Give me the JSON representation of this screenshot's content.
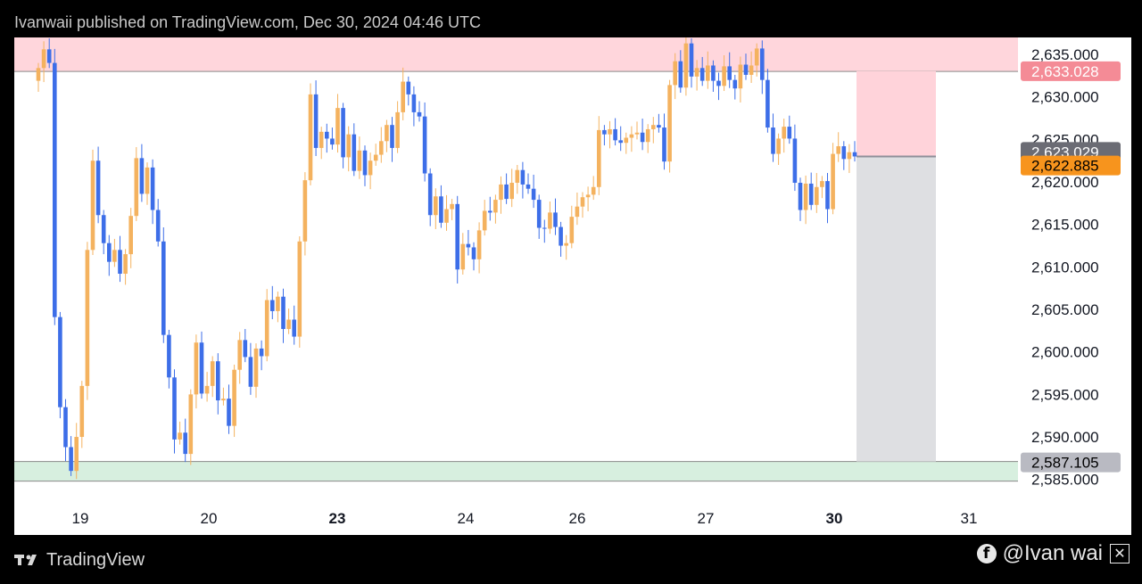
{
  "header": {
    "text": "Ivanwaii published on TradingView.com, Dec 30, 2024 04:46 UTC"
  },
  "footer": {
    "brand": "TradingView",
    "credit": "@Ivan wai",
    "social_icon": "facebook-icon",
    "x_icon": "x-icon"
  },
  "colors": {
    "up": "#f4b25f",
    "down": "#3d6ee8",
    "supply_zone": "#ffd6dc",
    "demand_zone": "#d7efdf",
    "price_tag": "#f7941d",
    "gray_tag": "#b9bac2"
  },
  "chart_data": {
    "type": "candlestick",
    "ylim": [
      2583.5,
      2637
    ],
    "y_ticks": [
      "2,585.000",
      "2,590.000",
      "2,595.000",
      "2,600.000",
      "2,605.000",
      "2,610.000",
      "2,615.000",
      "2,620.000",
      "2,625.000",
      "2,630.000",
      "2,635.000"
    ],
    "x_ticks": [
      {
        "label": "19",
        "bold": false
      },
      {
        "label": "20",
        "bold": false
      },
      {
        "label": "23",
        "bold": true
      },
      {
        "label": "24",
        "bold": false
      },
      {
        "label": "26",
        "bold": false
      },
      {
        "label": "27",
        "bold": false
      },
      {
        "label": "30",
        "bold": true
      },
      {
        "label": "31",
        "bold": false
      }
    ],
    "price_labels": {
      "supply": "2,633.028",
      "hidden": "2,623.029",
      "current": "2,622.885",
      "demand": "2,587.105"
    },
    "zones": {
      "supply": [
        2633.0,
        2637.5
      ],
      "demand": [
        2584.8,
        2587.1
      ]
    },
    "position_box": {
      "entry": 2623.0,
      "stop": 2633.03,
      "target": 2587.105
    },
    "closes": [
      2633.4,
      2635.6,
      2634.0,
      2604.1,
      2593.5,
      2588.8,
      2586.0,
      2590.0,
      2596.0,
      2612.0,
      2622.5,
      2616.1,
      2612.8,
      2610.6,
      2612.0,
      2609.2,
      2611.5,
      2616.0,
      2622.8,
      2618.6,
      2621.7,
      2616.7,
      2613.0,
      2602.0,
      2597.0,
      2589.7,
      2590.5,
      2588.0,
      2595.0,
      2601.1,
      2595.1,
      2596.0,
      2598.9,
      2594.3,
      2594.5,
      2591.3,
      2597.9,
      2601.4,
      2599.4,
      2595.9,
      2600.4,
      2599.5,
      2606.1,
      2604.8,
      2606.5,
      2602.7,
      2603.8,
      2601.8,
      2613.0,
      2620.2,
      2630.3,
      2624.0,
      2625.9,
      2625.1,
      2624.4,
      2628.7,
      2622.9,
      2625.6,
      2621.3,
      2623.7,
      2620.8,
      2622.5,
      2623.2,
      2624.8,
      2626.7,
      2624.0,
      2628.2,
      2631.8,
      2630.3,
      2628.2,
      2627.7,
      2621.0,
      2616.1,
      2618.3,
      2615.2,
      2616.8,
      2617.4,
      2609.7,
      2612.7,
      2612.3,
      2610.9,
      2614.3,
      2616.6,
      2616.4,
      2617.9,
      2619.7,
      2618.0,
      2619.9,
      2621.4,
      2619.7,
      2619.2,
      2617.9,
      2614.6,
      2614.5,
      2616.4,
      2614.7,
      2612.5,
      2612.8,
      2615.9,
      2617.1,
      2618.2,
      2618.5,
      2619.4,
      2626.1,
      2625.6,
      2626.2,
      2624.9,
      2624.6,
      2625.2,
      2625.6,
      2625.8,
      2624.7,
      2626.2,
      2626.7,
      2626.4,
      2622.4,
      2631.4,
      2634.2,
      2631.1,
      2636.3,
      2632.4,
      2633.4,
      2631.9,
      2633.7,
      2631.9,
      2631.3,
      2633.6,
      2632.0,
      2631.0,
      2633.8,
      2632.6,
      2633.7,
      2635.7,
      2632.0,
      2626.4,
      2623.3,
      2625.1,
      2626.5,
      2625.1,
      2619.9,
      2616.7,
      2619.8,
      2617.3,
      2619.4,
      2620.1,
      2616.8,
      2623.3,
      2624.2,
      2622.7,
      2623.5,
      2623.0
    ]
  }
}
